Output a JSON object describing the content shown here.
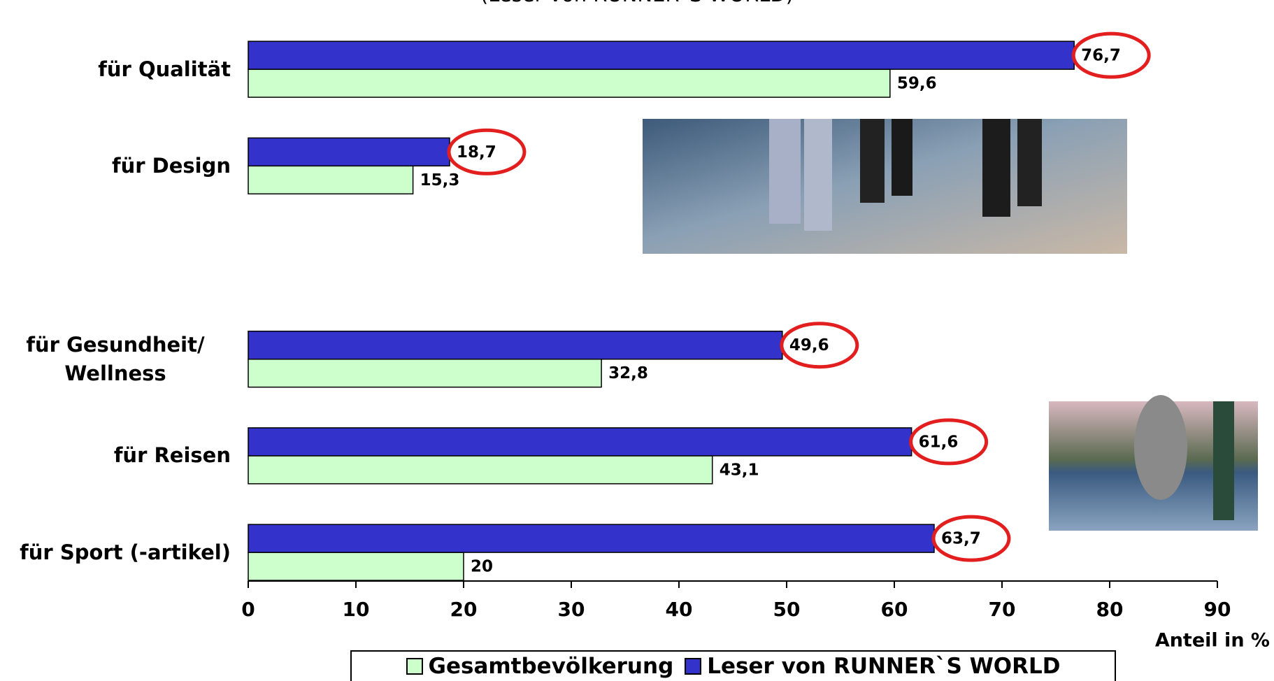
{
  "chart_data": {
    "type": "bar",
    "orientation": "horizontal",
    "subtitle": "(Leser von RUNNER`S WORLD)",
    "categories": [
      "für Qualität",
      "für Design",
      null,
      "für Gesundheit/ Wellness",
      "für Reisen",
      "für Sport (-artikel)"
    ],
    "series": [
      {
        "name": "Gesamtbevölkerung",
        "color": "#ccffcc",
        "values": [
          59.6,
          15.3,
          null,
          32.8,
          43.1,
          20
        ],
        "value_labels": [
          "59,6",
          "15,3",
          null,
          "32,8",
          "43,1",
          "20"
        ]
      },
      {
        "name": "Leser von RUNNER`S WORLD",
        "color": "#3333cc",
        "values": [
          76.7,
          18.7,
          null,
          49.6,
          61.6,
          63.7
        ],
        "value_labels": [
          "76,7",
          "18,7",
          null,
          "49,6",
          "61,6",
          "63,7"
        ]
      }
    ],
    "highlight_color": "#e31e1e",
    "xlabel": "Anteil in %",
    "xlim": [
      0,
      90
    ],
    "xticks": [
      0,
      10,
      20,
      30,
      40,
      50,
      60,
      70,
      80,
      90
    ]
  }
}
